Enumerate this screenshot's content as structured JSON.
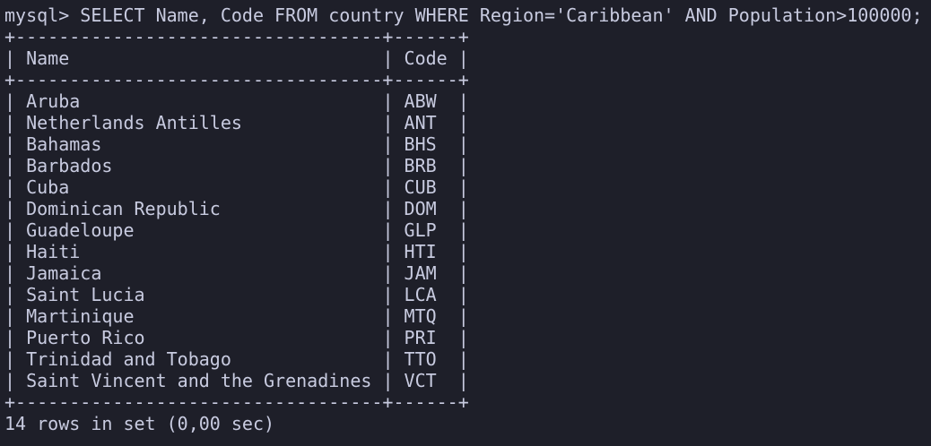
{
  "terminal": {
    "prompt": "mysql>",
    "command": "SELECT Name, Code FROM country WHERE Region='Caribbean' AND Population>100000;",
    "columns": [
      "Name",
      "Code"
    ],
    "rows": [
      [
        "Aruba",
        "ABW"
      ],
      [
        "Netherlands Antilles",
        "ANT"
      ],
      [
        "Bahamas",
        "BHS"
      ],
      [
        "Barbados",
        "BRB"
      ],
      [
        "Cuba",
        "CUB"
      ],
      [
        "Dominican Republic",
        "DOM"
      ],
      [
        "Guadeloupe",
        "GLP"
      ],
      [
        "Haiti",
        "HTI"
      ],
      [
        "Jamaica",
        "JAM"
      ],
      [
        "Saint Lucia",
        "LCA"
      ],
      [
        "Martinique",
        "MTQ"
      ],
      [
        "Puerto Rico",
        "PRI"
      ],
      [
        "Trinidad and Tobago",
        "TTO"
      ],
      [
        "Saint Vincent and the Grenadines",
        "VCT"
      ]
    ],
    "footer": "14 rows in set (0,00 sec)"
  },
  "colors": {
    "background": "#1e1f29",
    "text": "#c8cbe0"
  }
}
